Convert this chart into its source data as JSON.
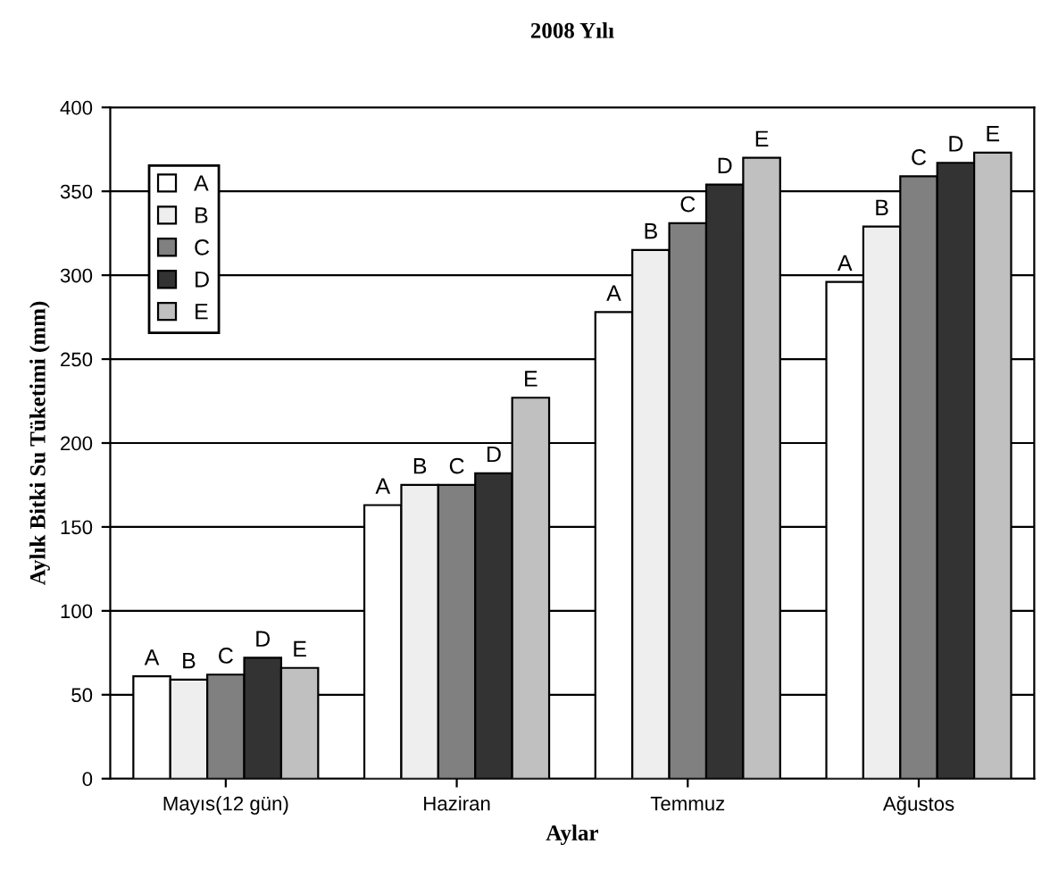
{
  "chart_data": {
    "type": "bar",
    "title": "2008 Yılı",
    "xlabel": "Aylar",
    "ylabel": "Aylık Bitki Su Tüketimi (mm)",
    "categories": [
      "Mayıs(12 gün)",
      "Haziran",
      "Temmuz",
      "Ağustos"
    ],
    "series": [
      {
        "name": "A",
        "color": "#ffffff",
        "values": [
          61,
          163,
          278,
          296
        ]
      },
      {
        "name": "B",
        "color": "#eeeeee",
        "values": [
          59,
          175,
          315,
          329
        ]
      },
      {
        "name": "C",
        "color": "#808080",
        "values": [
          62,
          175,
          331,
          359
        ]
      },
      {
        "name": "D",
        "color": "#333333",
        "values": [
          72,
          182,
          354,
          367
        ]
      },
      {
        "name": "E",
        "color": "#c0c0c0",
        "values": [
          66,
          227,
          370,
          373
        ]
      }
    ],
    "ylim": [
      0,
      400
    ],
    "yticks": [
      0,
      50,
      100,
      150,
      200,
      250,
      300,
      350,
      400
    ],
    "grid": "y",
    "legend": "top left"
  }
}
